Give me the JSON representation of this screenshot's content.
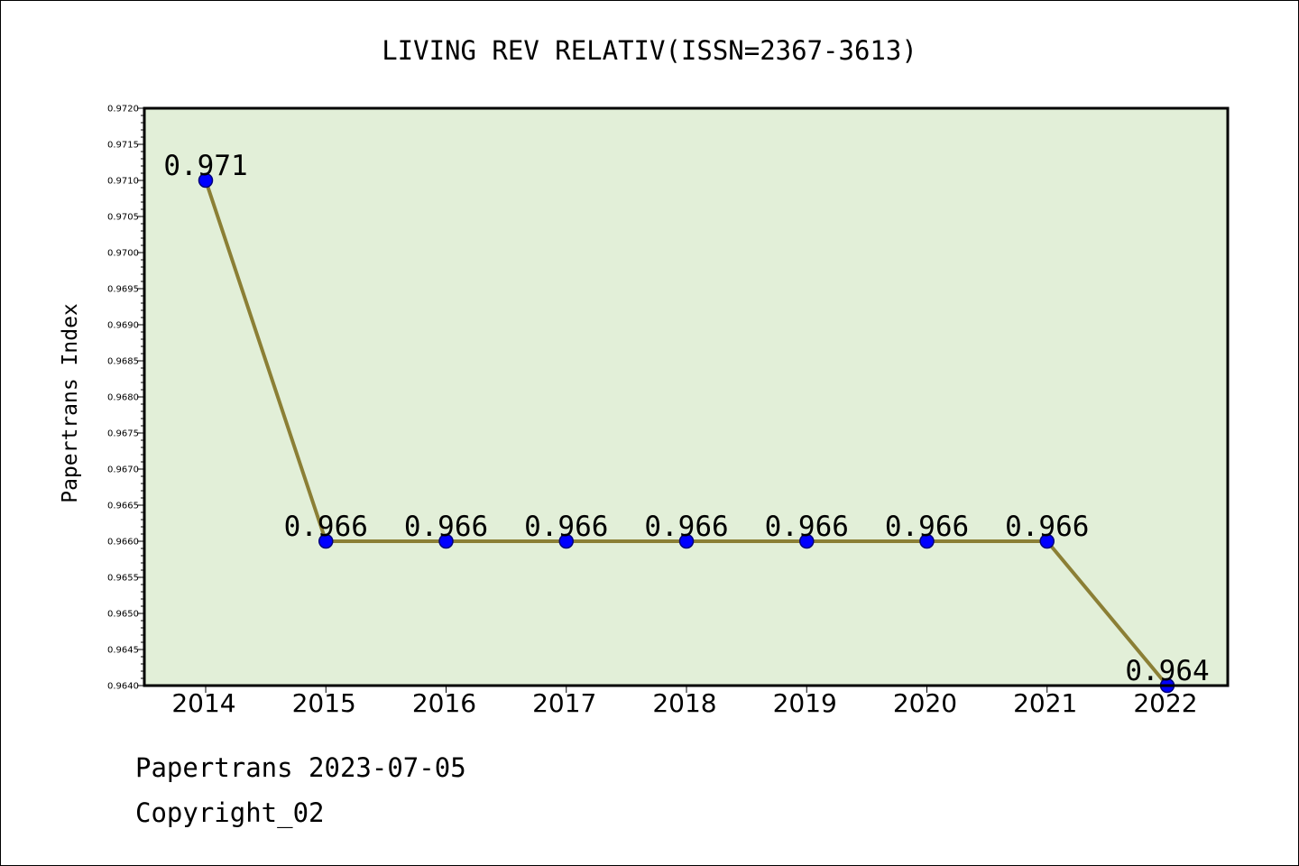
{
  "chart_data": {
    "type": "line",
    "title": "LIVING REV RELATIV(ISSN=2367-3613)",
    "xlabel": "",
    "ylabel": "Papertrans Index",
    "categories": [
      "2014",
      "2015",
      "2016",
      "2017",
      "2018",
      "2019",
      "2020",
      "2021",
      "2022"
    ],
    "series": [
      {
        "values": [
          0.971,
          0.966,
          0.966,
          0.966,
          0.966,
          0.966,
          0.966,
          0.966,
          0.964
        ]
      }
    ],
    "data_labels": [
      "0.971",
      "0.966",
      "0.966",
      "0.966",
      "0.966",
      "0.966",
      "0.966",
      "0.966",
      "0.964"
    ],
    "ylim": [
      0.964,
      0.972
    ],
    "y_major_ticks": [
      "0.9640",
      "0.9645",
      "0.9650",
      "0.9655",
      "0.9660",
      "0.9665",
      "0.9670",
      "0.9675",
      "0.9680",
      "0.9685",
      "0.9690",
      "0.9695",
      "0.9700",
      "0.9705",
      "0.9710",
      "0.9715",
      "0.9720"
    ],
    "grid": false,
    "colors": {
      "line": "#8B7F35",
      "marker": "#0000FF",
      "plot_background": "#E2EFD8"
    }
  },
  "footer": {
    "line1": "Papertrans 2023-07-05",
    "line2": "Copyright_02"
  }
}
